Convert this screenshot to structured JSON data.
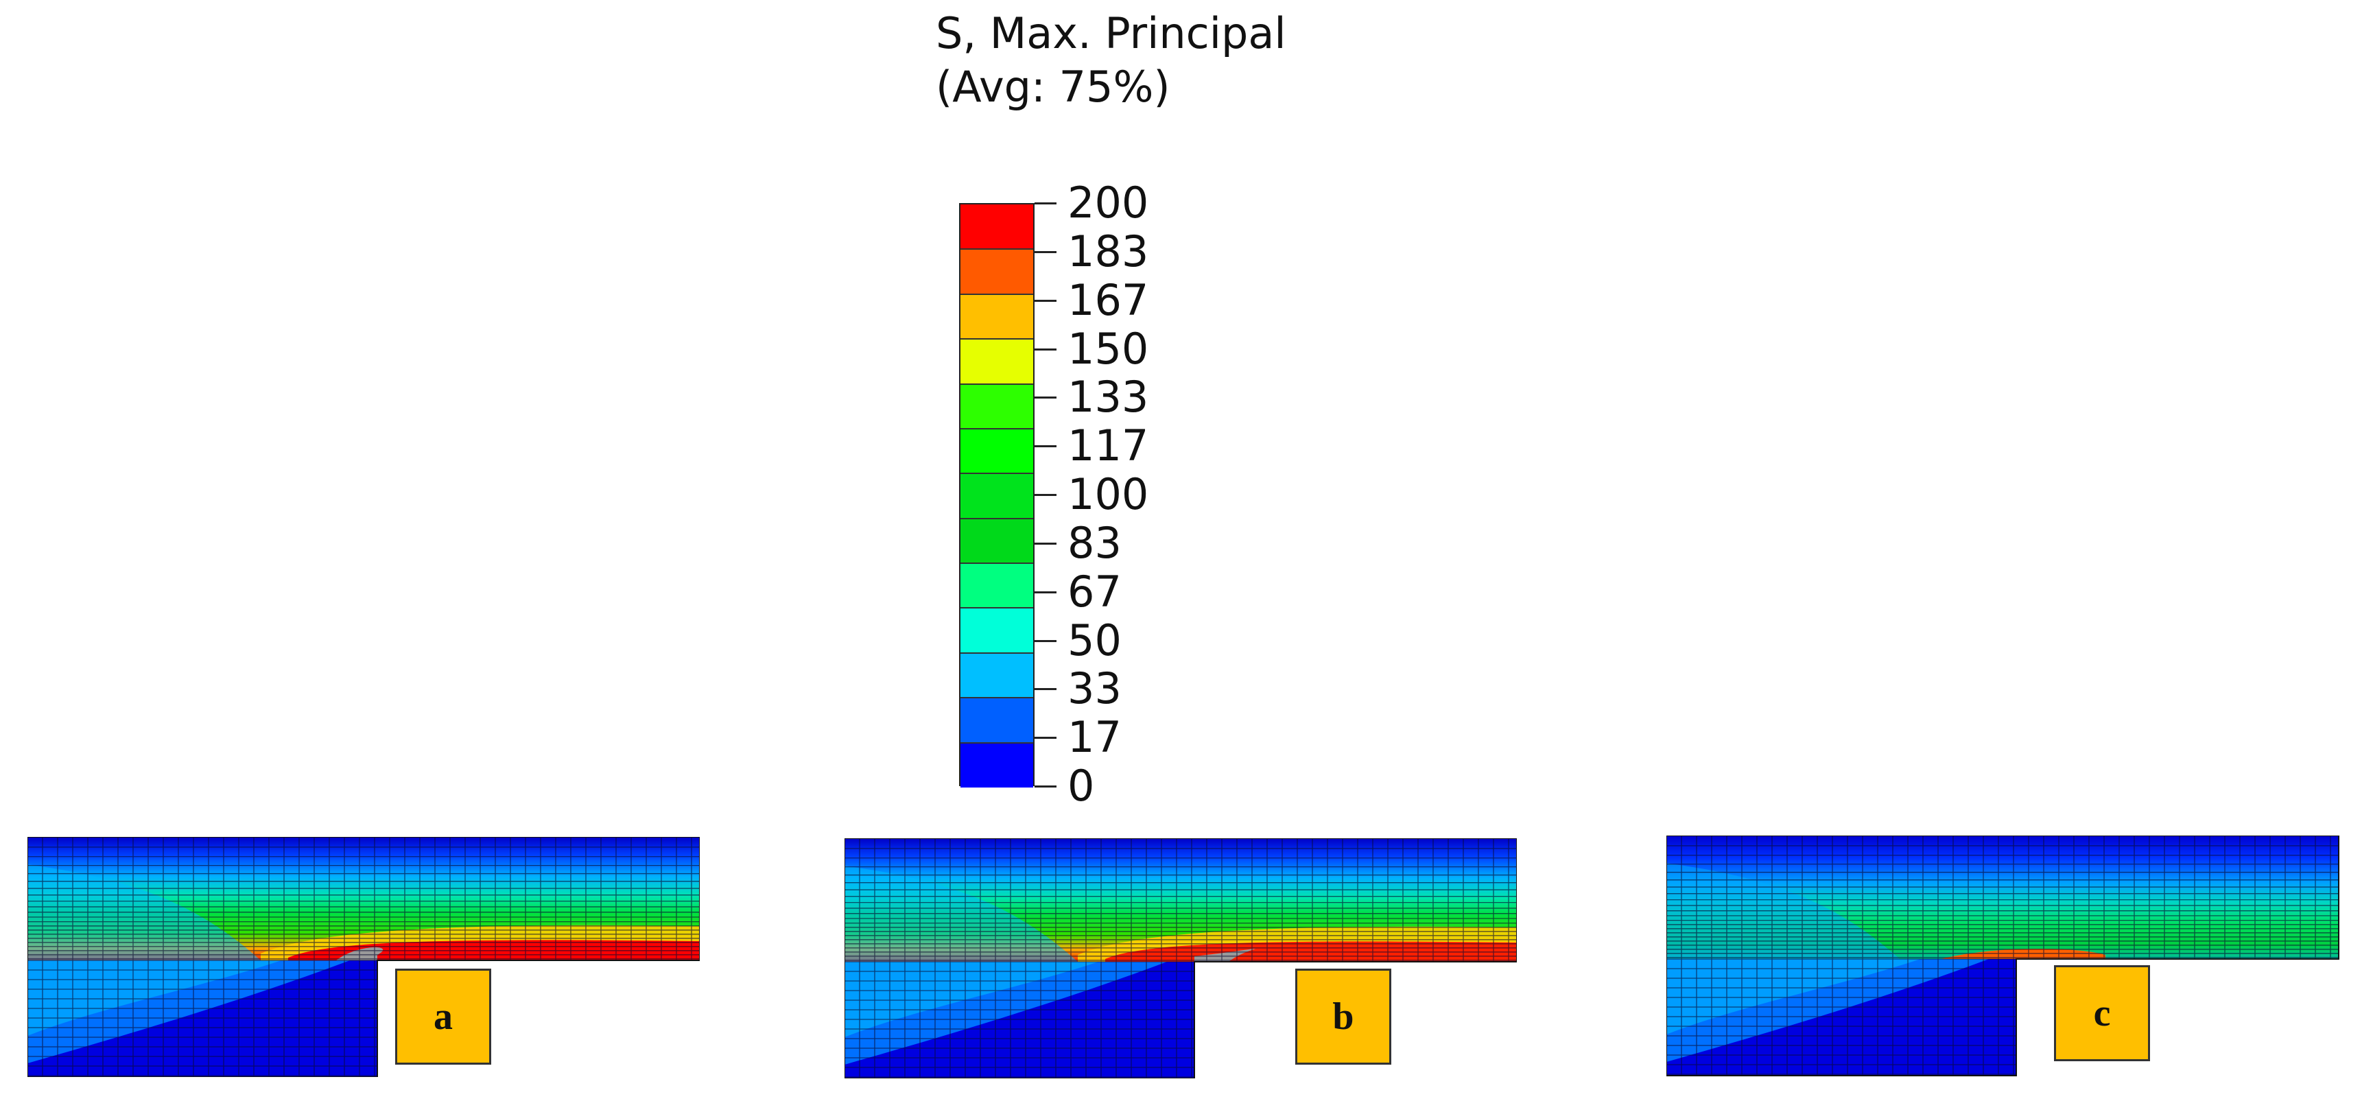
{
  "legend": {
    "title_line1": "S, Max. Principal",
    "title_line2": "(Avg: 75%)",
    "labels": [
      "200",
      "183",
      "167",
      "150",
      "133",
      "117",
      "100",
      "83",
      "67",
      "50",
      "33",
      "17",
      "0"
    ],
    "band_colors": [
      "#ff0000",
      "#ff5a00",
      "#ffbf00",
      "#e6ff00",
      "#2dff00",
      "#00ff00",
      "#00e31c",
      "#00d91a",
      "#00ff80",
      "#00ffd9",
      "#00bfff",
      "#0060ff",
      "#0000ff"
    ]
  },
  "panels": [
    {
      "label": "a",
      "max_color": "#ff0000",
      "contact": "gray"
    },
    {
      "label": "b",
      "max_color": "#ff2000",
      "contact": "gray"
    },
    {
      "label": "c",
      "max_color": "#ff4500",
      "contact": "none"
    }
  ]
}
